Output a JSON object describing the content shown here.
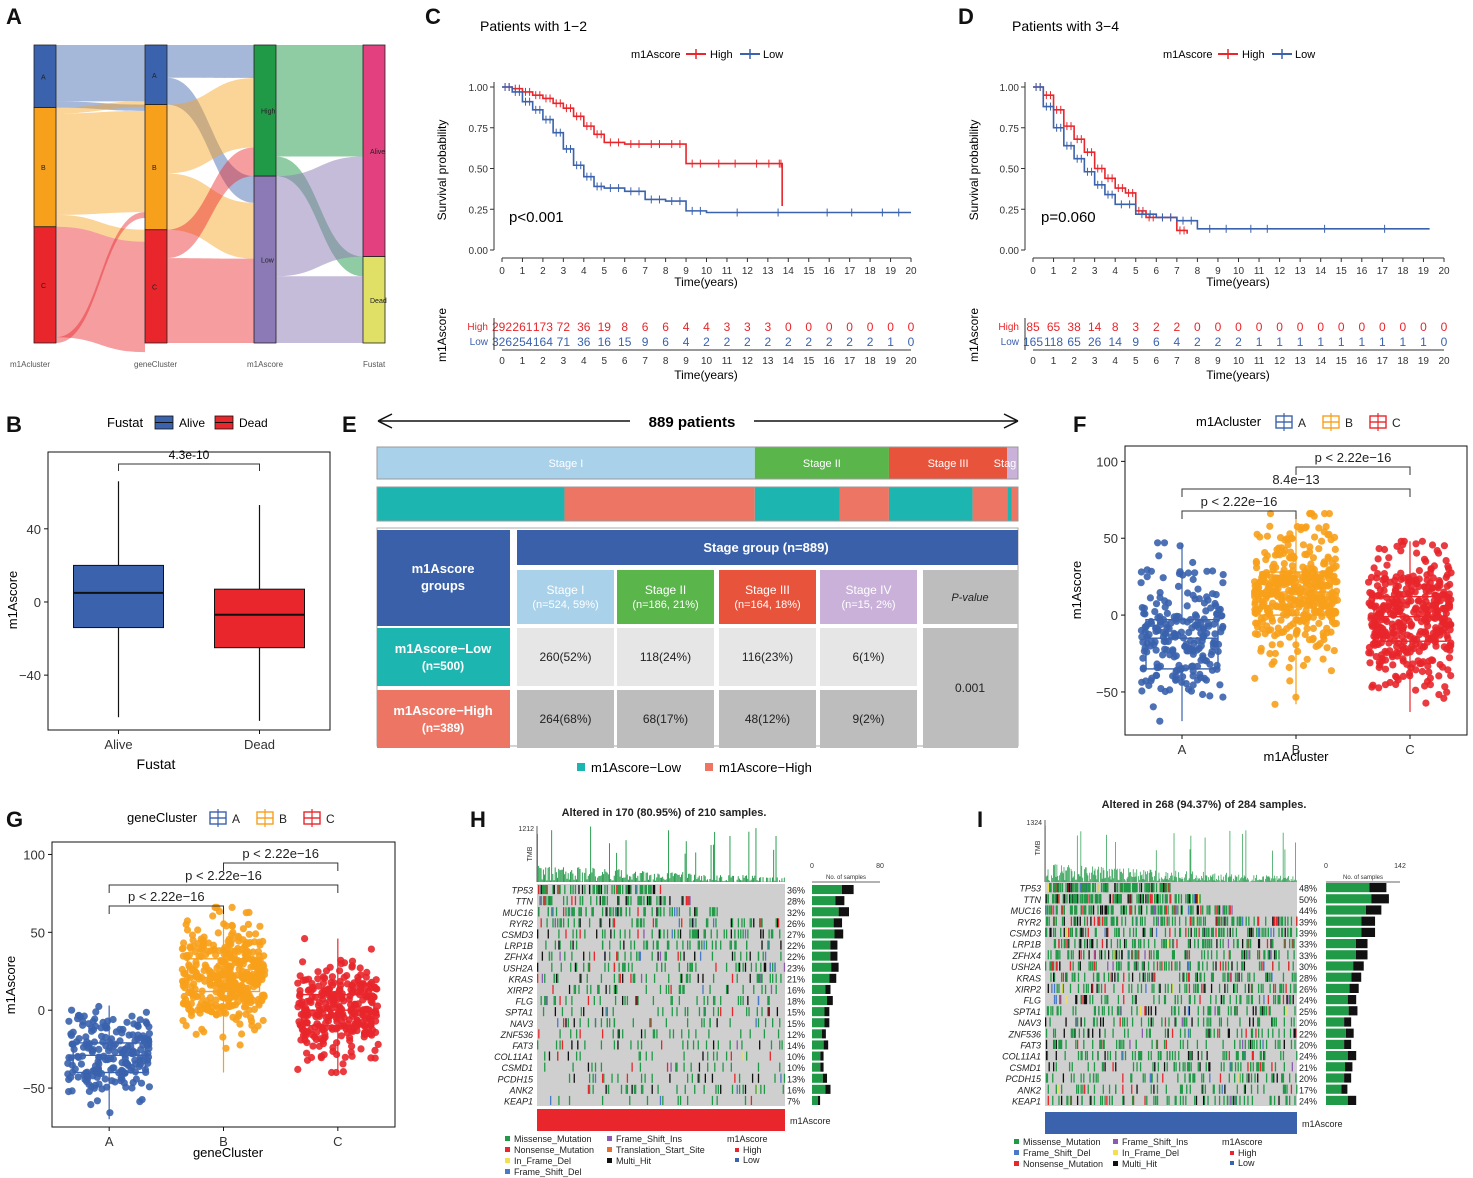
{
  "panel_labels": [
    "A",
    "B",
    "C",
    "D",
    "E",
    "F",
    "G",
    "H",
    "I"
  ],
  "colors": {
    "blue": "#3a62ad",
    "red": "#e8262b",
    "orange": "#f7a01b",
    "green": "#219a48",
    "purple": "#8b7ab5",
    "pink": "#e2407f",
    "yellow": "#e0e067",
    "teal": "#1cb5b0",
    "salmon": "#ec7564",
    "stage1": "#a9d1ea",
    "stage2": "#5ab54a",
    "stage3": "#e8533b",
    "stage4": "#c9b1d9",
    "headerblue": "#3960a8",
    "gray": "#bdbdbd"
  },
  "chart_data": [
    {
      "id": "A",
      "type": "sankey",
      "axes": [
        "m1Acluster",
        "geneCluster",
        "m1Ascore",
        "Fustat"
      ],
      "nodes": [
        [
          "A",
          "B",
          "C"
        ],
        [
          "A",
          "B",
          "C"
        ],
        [
          "High",
          "Low"
        ],
        [
          "Alive",
          "Dead"
        ]
      ],
      "node_fractions": [
        [
          0.21,
          0.4,
          0.39
        ],
        [
          0.2,
          0.42,
          0.38
        ],
        [
          0.44,
          0.56
        ],
        [
          0.71,
          0.29
        ]
      ],
      "flows_01": [
        [
          0,
          0,
          0.9
        ],
        [
          0,
          1,
          0.1
        ],
        [
          1,
          0,
          0.05
        ],
        [
          1,
          1,
          0.85
        ],
        [
          1,
          2,
          0.1
        ],
        [
          2,
          2,
          0.95
        ],
        [
          2,
          1,
          0.05
        ]
      ]
    },
    {
      "id": "B",
      "type": "boxplot",
      "legend_title": "Fustat",
      "legend": [
        "Alive",
        "Dead"
      ],
      "categories": [
        "Alive",
        "Dead"
      ],
      "xlabel": "Fustat",
      "ylabel": "m1Ascore",
      "ylim": [
        -70,
        82
      ],
      "yticks": [
        -40,
        0,
        40
      ],
      "boxes": [
        {
          "min": -63,
          "q1": -14,
          "median": 5,
          "q3": 20,
          "max": 66
        },
        {
          "min": -65,
          "q1": -25,
          "median": -7,
          "q3": 7,
          "max": 53
        }
      ],
      "comparison": {
        "label": "4.3e-10",
        "from": 0,
        "to": 1
      }
    },
    {
      "id": "C",
      "type": "line",
      "title": "Patients with 1−2",
      "legend_title": "m1Ascore",
      "legend": [
        "High",
        "Low"
      ],
      "xlabel": "Time(years)",
      "ylabel": "Survival probability",
      "xlim": [
        0,
        20
      ],
      "ylim": [
        0,
        1
      ],
      "yticks": [
        "0.00",
        "0.25",
        "0.50",
        "0.75",
        "1.00"
      ],
      "xticks": [
        "0",
        "1",
        "2",
        "3",
        "4",
        "5",
        "6",
        "7",
        "8",
        "9",
        "10",
        "11",
        "12",
        "13",
        "14",
        "15",
        "16",
        "17",
        "18",
        "19",
        "20"
      ],
      "pvalue": "p<0.001",
      "series": [
        {
          "name": "High",
          "x": [
            0,
            0.5,
            1,
            1.5,
            2,
            2.5,
            3,
            3.5,
            4,
            4.5,
            5,
            6,
            7,
            8,
            9,
            10,
            12,
            13.5,
            13.7
          ],
          "y": [
            1,
            0.99,
            0.97,
            0.95,
            0.93,
            0.9,
            0.87,
            0.82,
            0.76,
            0.71,
            0.66,
            0.65,
            0.65,
            0.65,
            0.53,
            0.53,
            0.53,
            0.53,
            0.27
          ]
        },
        {
          "name": "Low",
          "x": [
            0,
            0.5,
            1,
            1.5,
            2,
            2.5,
            3,
            3.5,
            4,
            4.5,
            5,
            6,
            7,
            8,
            9,
            10,
            15,
            18,
            20
          ],
          "y": [
            1,
            0.97,
            0.91,
            0.86,
            0.8,
            0.72,
            0.62,
            0.52,
            0.45,
            0.39,
            0.38,
            0.36,
            0.31,
            0.3,
            0.24,
            0.23,
            0.23,
            0.23,
            0.23
          ]
        }
      ],
      "risk_table": {
        "label": "m1Ascore",
        "High": [
          "292",
          "261",
          "173",
          "72",
          "36",
          "19",
          "8",
          "6",
          "6",
          "4",
          "4",
          "3",
          "3",
          "3",
          "0",
          "0",
          "0",
          "0",
          "0",
          "0",
          "0"
        ],
        "Low": [
          "326",
          "254",
          "164",
          "71",
          "36",
          "16",
          "15",
          "9",
          "6",
          "4",
          "2",
          "2",
          "2",
          "2",
          "2",
          "2",
          "2",
          "2",
          "2",
          "1",
          "0"
        ]
      }
    },
    {
      "id": "D",
      "type": "line",
      "title": "Patients with 3−4",
      "legend_title": "m1Ascore",
      "legend": [
        "High",
        "Low"
      ],
      "xlabel": "Time(years)",
      "ylabel": "Survival probability",
      "xlim": [
        0,
        20
      ],
      "ylim": [
        0,
        1
      ],
      "yticks": [
        "0.00",
        "0.25",
        "0.50",
        "0.75",
        "1.00"
      ],
      "xticks": [
        "0",
        "1",
        "2",
        "3",
        "4",
        "5",
        "6",
        "7",
        "8",
        "9",
        "10",
        "11",
        "12",
        "13",
        "14",
        "15",
        "16",
        "17",
        "18",
        "19",
        "20"
      ],
      "pvalue": "p=0.060",
      "series": [
        {
          "name": "High",
          "x": [
            0,
            0.5,
            1,
            1.5,
            2,
            2.5,
            3,
            3.5,
            4,
            4.5,
            5,
            5.5,
            6,
            7,
            7.5
          ],
          "y": [
            1,
            0.95,
            0.86,
            0.76,
            0.68,
            0.6,
            0.5,
            0.44,
            0.38,
            0.35,
            0.24,
            0.2,
            0.2,
            0.12,
            0.1
          ]
        },
        {
          "name": "Low",
          "x": [
            0,
            0.5,
            1,
            1.5,
            2,
            2.5,
            3,
            3.5,
            4,
            5,
            6,
            7,
            8,
            10,
            12,
            19.3
          ],
          "y": [
            1,
            0.88,
            0.75,
            0.64,
            0.56,
            0.48,
            0.4,
            0.34,
            0.28,
            0.22,
            0.2,
            0.18,
            0.13,
            0.13,
            0.13,
            0.13
          ]
        }
      ],
      "risk_table": {
        "label": "m1Ascore",
        "High": [
          "85",
          "65",
          "38",
          "14",
          "8",
          "3",
          "2",
          "2",
          "0",
          "0",
          "0",
          "0",
          "0",
          "0",
          "0",
          "0",
          "0",
          "0",
          "0",
          "0",
          "0"
        ],
        "Low": [
          "165",
          "118",
          "65",
          "26",
          "14",
          "9",
          "6",
          "4",
          "2",
          "2",
          "2",
          "1",
          "1",
          "1",
          "1",
          "1",
          "1",
          "1",
          "1",
          "1",
          "0"
        ]
      }
    },
    {
      "id": "E",
      "type": "table",
      "title": "889 patients",
      "stage_bar": [
        {
          "label": "Stage I",
          "n": 524
        },
        {
          "label": "Stage II",
          "n": 186
        },
        {
          "label": "Stage III",
          "n": 164
        },
        {
          "label": "Stage IV",
          "n": 15
        }
      ],
      "stage_bar_label_cut": "Stag",
      "group_bar": [
        [
          {
            "g": "Low",
            "n": 260
          },
          {
            "g": "High",
            "n": 264
          }
        ],
        [
          {
            "g": "Low",
            "n": 118
          },
          {
            "g": "High",
            "n": 68
          }
        ],
        [
          {
            "g": "Low",
            "n": 116
          },
          {
            "g": "High",
            "n": 48
          }
        ],
        [
          {
            "g": "Low",
            "n": 6
          },
          {
            "g": "High",
            "n": 9
          }
        ]
      ],
      "header": "Stage group (n=889)",
      "row_header": "m1Ascore\ngroups",
      "columns": [
        {
          "name": "Stage I",
          "sub": "(n=524, 59%)"
        },
        {
          "name": "Stage II",
          "sub": "(n=186, 21%)"
        },
        {
          "name": "Stage III",
          "sub": "(n=164, 18%)"
        },
        {
          "name": "Stage IV",
          "sub": "(n=15, 2%)"
        }
      ],
      "pvalue_header": "P-value",
      "rows": [
        {
          "name": "m1Ascore−Low",
          "n": "(n=500)",
          "cells": [
            "260(52%)",
            "118(24%)",
            "116(23%)",
            "6(1%)"
          ]
        },
        {
          "name": "m1Ascore−High",
          "n": "(n=389)",
          "cells": [
            "264(68%)",
            "68(17%)",
            "48(12%)",
            "9(2%)"
          ]
        }
      ],
      "pvalue": "0.001",
      "legend": [
        "m1Ascore−Low",
        "m1Ascore−High"
      ]
    },
    {
      "id": "F",
      "type": "boxplot",
      "legend_title": "m1Acluster",
      "legend": [
        "A",
        "B",
        "C"
      ],
      "categories": [
        "A",
        "B",
        "C"
      ],
      "xlabel": "m1Acluster",
      "ylabel": "m1Ascore",
      "ylim": [
        -78,
        110
      ],
      "yticks": [
        -50,
        0,
        50,
        100
      ],
      "boxes": [
        {
          "min": -69,
          "q1": -35,
          "median": -15,
          "q3": -3,
          "max": 47
        },
        {
          "min": -58,
          "q1": 0,
          "median": 15,
          "q3": 28,
          "max": 66
        },
        {
          "min": -63,
          "q1": -17,
          "median": -1,
          "q3": 12,
          "max": 48
        }
      ],
      "comparisons": [
        {
          "label": "p < 2.22e−16",
          "from": 0,
          "to": 1
        },
        {
          "label": "8.4e−13",
          "from": 0,
          "to": 2
        },
        {
          "label": "p < 2.22e−16",
          "from": 1,
          "to": 2
        }
      ],
      "counts": [
        230,
        410,
        390
      ]
    },
    {
      "id": "G",
      "type": "boxplot",
      "legend_title": "geneCluster",
      "legend": [
        "A",
        "B",
        "C"
      ],
      "categories": [
        "A",
        "B",
        "C"
      ],
      "xlabel": "geneCluster",
      "ylabel": "m1Ascore",
      "ylim": [
        -75,
        108
      ],
      "yticks": [
        -50,
        0,
        50,
        100
      ],
      "boxes": [
        {
          "min": -70,
          "q1": -40,
          "median": -29,
          "q3": -21,
          "max": 3
        },
        {
          "min": -40,
          "q1": 12,
          "median": 21,
          "q3": 33,
          "max": 66
        },
        {
          "min": -40,
          "q1": -10,
          "median": 0,
          "q3": 10,
          "max": 46
        }
      ],
      "comparisons": [
        {
          "label": "p < 2.22e−16",
          "from": 0,
          "to": 1
        },
        {
          "label": "p < 2.22e−16",
          "from": 0,
          "to": 2
        },
        {
          "label": "p < 2.22e−16",
          "from": 1,
          "to": 2
        }
      ],
      "counts": [
        210,
        380,
        300
      ]
    },
    {
      "id": "H",
      "type": "heatmap",
      "title": "Altered in 170 (80.95%) of 210 samples.",
      "tmb_label": "TMB",
      "tmb_max": "1212",
      "samples_axis": [
        "0",
        "80"
      ],
      "samples_label": "No. of samples",
      "annotation_label": "m1Ascore",
      "annotation_group": "High",
      "genes": [
        "TP53",
        "TTN",
        "MUC16",
        "RYR2",
        "CSMD3",
        "LRP1B",
        "ZFHX4",
        "USH2A",
        "KRAS",
        "XIRP2",
        "FLG",
        "SPTA1",
        "NAV3",
        "ZNF536",
        "FAT3",
        "COL11A1",
        "CSMD1",
        "PCDH15",
        "ANK2",
        "KEAP1"
      ],
      "percents": [
        "36%",
        "28%",
        "32%",
        "26%",
        "27%",
        "22%",
        "22%",
        "23%",
        "21%",
        "16%",
        "18%",
        "15%",
        "15%",
        "12%",
        "14%",
        "10%",
        "10%",
        "13%",
        "16%",
        "7%"
      ],
      "legend": [
        "Missense_Mutation",
        "Nonsense_Mutation",
        "In_Frame_Del",
        "Frame_Shift_Del",
        "Frame_Shift_Ins",
        "Translation_Start_Site",
        "Multi_Hit"
      ],
      "annotation_legend_title": "m1Ascore",
      "annotation_legend": [
        "High",
        "Low"
      ]
    },
    {
      "id": "I",
      "type": "heatmap",
      "title": "Altered in 268 (94.37%) of 284 samples.",
      "tmb_label": "TMB",
      "tmb_max": "1324",
      "samples_axis": [
        "0",
        "142"
      ],
      "samples_label": "No. of samples",
      "annotation_label": "m1Ascore",
      "annotation_group": "Low",
      "genes": [
        "TP53",
        "TTN",
        "MUC16",
        "RYR2",
        "CSMD3",
        "LRP1B",
        "ZFHX4",
        "USH2A",
        "KRAS",
        "XIRP2",
        "FLG",
        "SPTA1",
        "NAV3",
        "ZNF536",
        "FAT3",
        "COL11A1",
        "CSMD1",
        "PCDH15",
        "ANK2",
        "KEAP1"
      ],
      "percents": [
        "48%",
        "50%",
        "44%",
        "39%",
        "39%",
        "33%",
        "33%",
        "30%",
        "28%",
        "26%",
        "24%",
        "25%",
        "20%",
        "22%",
        "20%",
        "24%",
        "21%",
        "20%",
        "17%",
        "24%"
      ],
      "legend": [
        "Missense_Mutation",
        "Frame_Shift_Del",
        "Nonsense_Mutation",
        "Frame_Shift_Ins",
        "In_Frame_Del",
        "Multi_Hit"
      ],
      "annotation_legend_title": "m1Ascore",
      "annotation_legend": [
        "High",
        "Low"
      ]
    }
  ]
}
